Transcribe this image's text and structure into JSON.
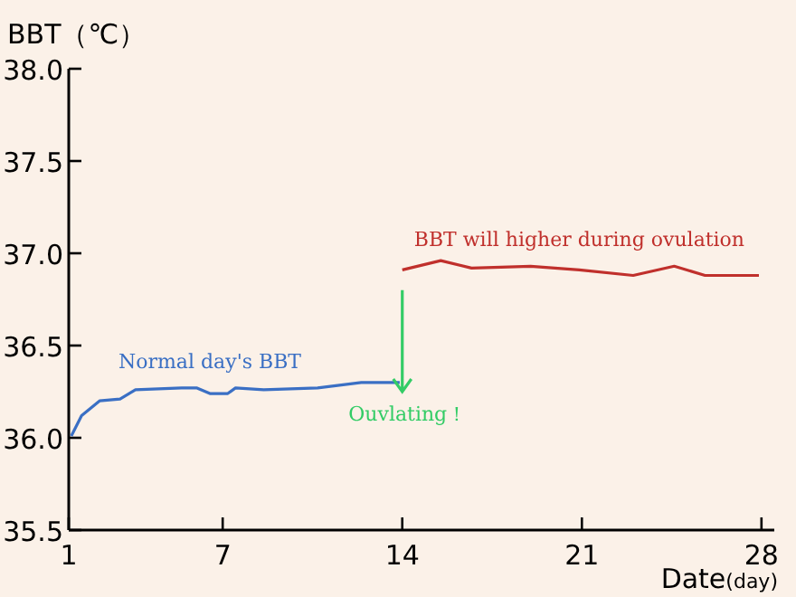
{
  "chart_data": {
    "type": "line",
    "xlabel": "Date(day)",
    "ylabel": "BBT（℃）",
    "xlim": [
      1,
      28.5
    ],
    "xticks": [
      1,
      7,
      14,
      21,
      28
    ],
    "ylim": [
      35.5,
      38.0
    ],
    "yticks": [
      {
        "value": 35.5,
        "label": "35.5"
      },
      {
        "value": 36.0,
        "label": "36.0"
      },
      {
        "value": 36.5,
        "label": "36.5"
      },
      {
        "value": 37.0,
        "label": "37.0"
      },
      {
        "value": 37.5,
        "label": "37.5"
      },
      {
        "value": 38.0,
        "label": "38.0"
      }
    ],
    "grid": false,
    "series": [
      {
        "name": "Normal day's BBT",
        "color": "#3a6fc4",
        "x": [
          1.1,
          1.5,
          2.2,
          3.0,
          3.6,
          5.4,
          6.0,
          6.5,
          7.2,
          7.5,
          8.6,
          10.7,
          12.4,
          13.9
        ],
        "values": [
          36.01,
          36.12,
          36.2,
          36.21,
          36.26,
          36.27,
          36.27,
          36.24,
          36.24,
          36.27,
          36.26,
          36.27,
          36.3,
          36.3
        ]
      },
      {
        "name": "BBT will higher during ovulation",
        "color": "#c0302c",
        "x": [
          14.0,
          15.5,
          16.7,
          19.0,
          20.9,
          23.0,
          24.6,
          25.8,
          27.9
        ],
        "values": [
          36.91,
          36.96,
          36.92,
          36.93,
          36.91,
          36.88,
          36.93,
          36.88,
          36.88
        ]
      }
    ],
    "annotations": [
      {
        "text": "Ouvlating！",
        "x": 14,
        "y": 36.25
      }
    ]
  }
}
